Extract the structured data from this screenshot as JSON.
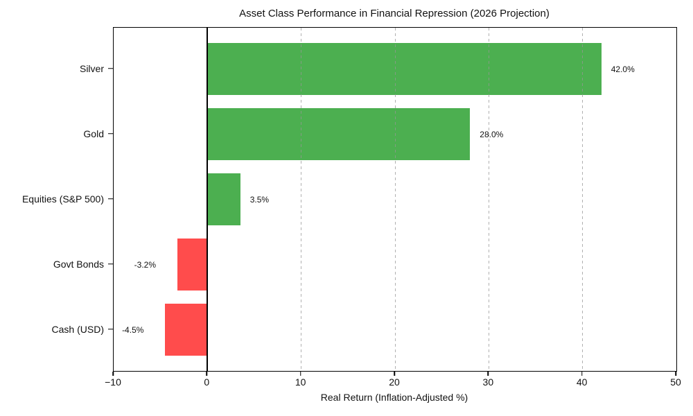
{
  "chart_data": {
    "type": "bar",
    "orientation": "horizontal",
    "title": "Asset Class Performance in Financial Repression (2026 Projection)",
    "xlabel": "Real Return (Inflation-Adjusted %)",
    "ylabel": "",
    "categories": [
      "Silver",
      "Gold",
      "Equities (S&P 500)",
      "Govt Bonds",
      "Cash (USD)"
    ],
    "values": [
      42.0,
      28.0,
      3.5,
      -3.2,
      -4.5
    ],
    "value_labels": [
      "42.0%",
      "28.0%",
      "3.5%",
      "-3.2%",
      "-4.5%"
    ],
    "xlim": [
      -10,
      50
    ],
    "xticks": [
      -10,
      0,
      10,
      20,
      30,
      40,
      50
    ],
    "xtick_labels": [
      "−10",
      "0",
      "10",
      "20",
      "30",
      "40",
      "50"
    ],
    "grid": "vertical-dashed",
    "legend": "none",
    "colors": {
      "positive_bar": "#4caf50",
      "negative_bar": "#ff4c4c",
      "zero_line": "#000000",
      "gridline": "#b4b4b4",
      "text": "#111111"
    }
  }
}
